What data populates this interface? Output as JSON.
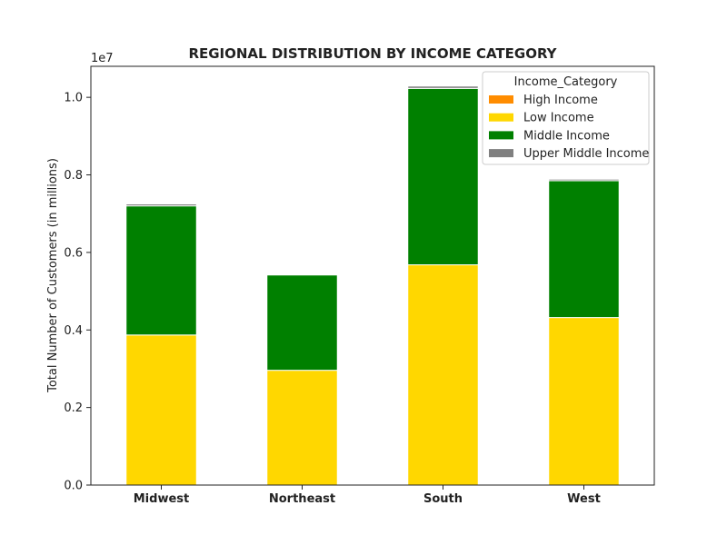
{
  "chart_data": {
    "type": "bar",
    "stacked": true,
    "title": "REGIONAL DISTRIBUTION BY INCOME CATEGORY",
    "xlabel": "",
    "ylabel": "Total Number of Customers (in millions)",
    "offset_text": "1e7",
    "categories": [
      "Midwest",
      "Northeast",
      "South",
      "West"
    ],
    "series": [
      {
        "name": "High Income",
        "color": "#ff8c00",
        "values": [
          0,
          0,
          0,
          0
        ]
      },
      {
        "name": "Low Income",
        "color": "#ffd700",
        "values": [
          3870000,
          2960000,
          5680000,
          4320000
        ]
      },
      {
        "name": "Middle Income",
        "color": "#008000",
        "values": [
          3330000,
          2460000,
          4550000,
          3530000
        ]
      },
      {
        "name": "Upper Middle Income",
        "color": "#808080",
        "values": [
          50000,
          10000,
          60000,
          40000
        ]
      }
    ],
    "ylim": [
      0,
      10800000
    ],
    "yticks": [
      0,
      2000000,
      4000000,
      6000000,
      8000000,
      10000000
    ],
    "ytick_labels": [
      "0.0",
      "0.2",
      "0.4",
      "0.6",
      "0.8",
      "1.0"
    ],
    "legend": {
      "title": "Income_Category",
      "placement": "top-right"
    },
    "grid": false
  }
}
